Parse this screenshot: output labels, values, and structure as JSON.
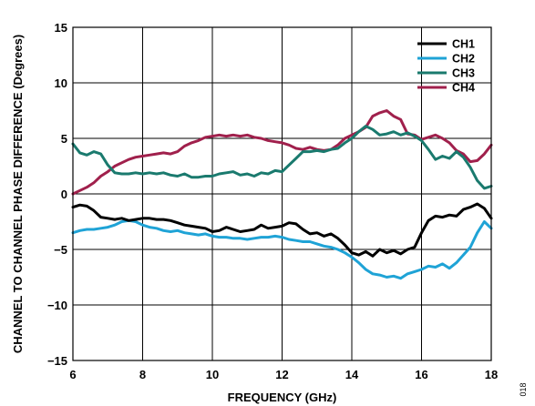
{
  "chart_data": {
    "type": "line",
    "xlabel": "FREQUENCY (GHz)",
    "ylabel": "CHANNEL TO CHANNEL PHASE DIFFERENCE (Degrees)",
    "xlim": [
      6,
      18
    ],
    "ylim": [
      -15,
      15
    ],
    "x_ticks": [
      "6",
      "8",
      "10",
      "12",
      "14",
      "16",
      "18"
    ],
    "y_ticks": [
      "15",
      "10",
      "5",
      "0",
      "−5",
      "−10",
      "−15"
    ],
    "grid": true,
    "legend_position": "top-right",
    "side_code": "018",
    "series": [
      {
        "name": "CH1",
        "color": "#000000",
        "x": [
          6.0,
          6.2,
          6.4,
          6.6,
          6.8,
          7.0,
          7.2,
          7.4,
          7.6,
          7.8,
          8.0,
          8.2,
          8.4,
          8.6,
          8.8,
          9.0,
          9.2,
          9.4,
          9.6,
          9.8,
          10.0,
          10.2,
          10.4,
          10.6,
          10.8,
          11.0,
          11.2,
          11.4,
          11.6,
          11.8,
          12.0,
          12.2,
          12.4,
          12.6,
          12.8,
          13.0,
          13.2,
          13.4,
          13.6,
          13.8,
          14.0,
          14.2,
          14.4,
          14.6,
          14.8,
          15.0,
          15.2,
          15.4,
          15.6,
          15.8,
          16.0,
          16.2,
          16.4,
          16.6,
          16.8,
          17.0,
          17.2,
          17.4,
          17.6,
          17.8,
          18.0
        ],
        "y": [
          -1.2,
          -1.0,
          -1.1,
          -1.5,
          -2.1,
          -2.2,
          -2.3,
          -2.2,
          -2.4,
          -2.3,
          -2.2,
          -2.2,
          -2.3,
          -2.3,
          -2.4,
          -2.6,
          -2.8,
          -2.9,
          -3.0,
          -3.1,
          -3.4,
          -3.3,
          -3.0,
          -3.2,
          -3.4,
          -3.3,
          -3.2,
          -2.8,
          -3.1,
          -3.0,
          -2.9,
          -2.6,
          -2.7,
          -3.2,
          -3.6,
          -3.5,
          -3.8,
          -3.6,
          -4.0,
          -4.6,
          -5.3,
          -5.5,
          -5.2,
          -5.6,
          -5.0,
          -5.3,
          -5.1,
          -5.4,
          -5.0,
          -4.8,
          -3.5,
          -2.4,
          -2.0,
          -2.1,
          -1.9,
          -2.0,
          -1.4,
          -1.2,
          -0.9,
          -1.3,
          -2.2
        ]
      },
      {
        "name": "CH2",
        "color": "#1fa3d6",
        "x": [
          6.0,
          6.2,
          6.4,
          6.6,
          6.8,
          7.0,
          7.2,
          7.4,
          7.6,
          7.8,
          8.0,
          8.2,
          8.4,
          8.6,
          8.8,
          9.0,
          9.2,
          9.4,
          9.6,
          9.8,
          10.0,
          10.2,
          10.4,
          10.6,
          10.8,
          11.0,
          11.2,
          11.4,
          11.6,
          11.8,
          12.0,
          12.2,
          12.4,
          12.6,
          12.8,
          13.0,
          13.2,
          13.4,
          13.6,
          13.8,
          14.0,
          14.2,
          14.4,
          14.6,
          14.8,
          15.0,
          15.2,
          15.4,
          15.6,
          15.8,
          16.0,
          16.2,
          16.4,
          16.6,
          16.8,
          17.0,
          17.2,
          17.4,
          17.6,
          17.8,
          18.0
        ],
        "y": [
          -3.5,
          -3.3,
          -3.2,
          -3.2,
          -3.1,
          -3.0,
          -2.8,
          -2.5,
          -2.4,
          -2.5,
          -2.8,
          -3.0,
          -3.1,
          -3.3,
          -3.4,
          -3.3,
          -3.5,
          -3.6,
          -3.7,
          -3.6,
          -3.8,
          -3.9,
          -3.9,
          -4.0,
          -4.0,
          -4.1,
          -4.0,
          -3.9,
          -3.9,
          -3.8,
          -3.9,
          -4.1,
          -4.2,
          -4.3,
          -4.3,
          -4.5,
          -4.7,
          -4.8,
          -5.0,
          -5.3,
          -5.7,
          -6.2,
          -6.8,
          -7.2,
          -7.3,
          -7.5,
          -7.4,
          -7.6,
          -7.2,
          -7.0,
          -6.8,
          -6.5,
          -6.6,
          -6.3,
          -6.7,
          -6.2,
          -5.5,
          -4.8,
          -3.5,
          -2.5,
          -3.1
        ]
      },
      {
        "name": "CH3",
        "color": "#1a7a6e",
        "x": [
          6.0,
          6.2,
          6.4,
          6.6,
          6.8,
          7.0,
          7.2,
          7.4,
          7.6,
          7.8,
          8.0,
          8.2,
          8.4,
          8.6,
          8.8,
          9.0,
          9.2,
          9.4,
          9.6,
          9.8,
          10.0,
          10.2,
          10.4,
          10.6,
          10.8,
          11.0,
          11.2,
          11.4,
          11.6,
          11.8,
          12.0,
          12.2,
          12.4,
          12.6,
          12.8,
          13.0,
          13.2,
          13.4,
          13.6,
          13.8,
          14.0,
          14.2,
          14.4,
          14.6,
          14.8,
          15.0,
          15.2,
          15.4,
          15.6,
          15.8,
          16.0,
          16.2,
          16.4,
          16.6,
          16.8,
          17.0,
          17.2,
          17.4,
          17.6,
          17.8,
          18.0
        ],
        "y": [
          4.5,
          3.7,
          3.5,
          3.8,
          3.6,
          2.6,
          1.9,
          1.8,
          1.8,
          1.9,
          1.8,
          1.9,
          1.8,
          1.9,
          1.7,
          1.6,
          1.8,
          1.5,
          1.5,
          1.6,
          1.6,
          1.8,
          1.9,
          2.0,
          1.7,
          1.8,
          1.6,
          1.9,
          1.8,
          2.1,
          2.0,
          2.6,
          3.2,
          3.8,
          3.8,
          3.9,
          3.8,
          4.0,
          4.1,
          4.6,
          5.0,
          5.6,
          6.1,
          5.8,
          5.3,
          5.4,
          5.6,
          5.3,
          5.5,
          5.2,
          4.8,
          4.0,
          3.1,
          3.4,
          3.2,
          3.8,
          3.3,
          2.4,
          1.2,
          0.5,
          0.7
        ]
      },
      {
        "name": "CH4",
        "color": "#a0204c",
        "x": [
          6.0,
          6.2,
          6.4,
          6.6,
          6.8,
          7.0,
          7.2,
          7.4,
          7.6,
          7.8,
          8.0,
          8.2,
          8.4,
          8.6,
          8.8,
          9.0,
          9.2,
          9.4,
          9.6,
          9.8,
          10.0,
          10.2,
          10.4,
          10.6,
          10.8,
          11.0,
          11.2,
          11.4,
          11.6,
          11.8,
          12.0,
          12.2,
          12.4,
          12.6,
          12.8,
          13.0,
          13.2,
          13.4,
          13.6,
          13.8,
          14.0,
          14.2,
          14.4,
          14.6,
          14.8,
          15.0,
          15.2,
          15.4,
          15.6,
          15.8,
          16.0,
          16.2,
          16.4,
          16.6,
          16.8,
          17.0,
          17.2,
          17.4,
          17.6,
          17.8,
          18.0
        ],
        "y": [
          0.0,
          0.3,
          0.6,
          1.0,
          1.6,
          2.0,
          2.5,
          2.8,
          3.1,
          3.3,
          3.4,
          3.5,
          3.6,
          3.7,
          3.6,
          3.8,
          4.3,
          4.6,
          4.8,
          5.1,
          5.2,
          5.3,
          5.2,
          5.3,
          5.2,
          5.3,
          5.1,
          5.0,
          4.8,
          4.7,
          4.6,
          4.4,
          4.1,
          4.0,
          4.2,
          4.0,
          3.9,
          4.0,
          4.4,
          5.0,
          5.3,
          5.6,
          6.0,
          7.0,
          7.3,
          7.5,
          7.0,
          6.7,
          5.4,
          5.3,
          4.9,
          5.1,
          5.3,
          5.0,
          4.6,
          3.9,
          3.6,
          2.9,
          3.0,
          3.6,
          4.4
        ]
      }
    ]
  }
}
